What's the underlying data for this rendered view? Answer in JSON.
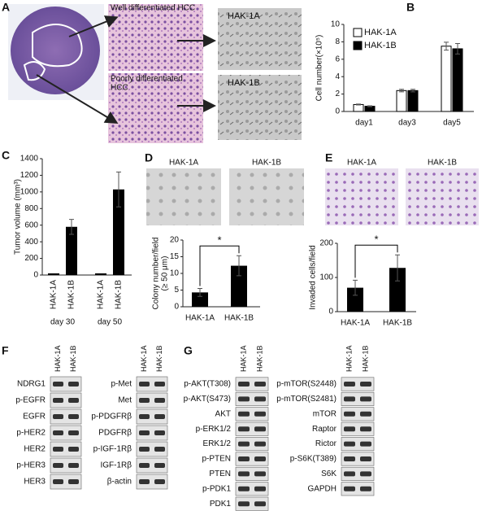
{
  "panels": {
    "A": {
      "letter": "A",
      "well": "Well differentiated HCC",
      "poor": [
        "Poorly differentiated",
        "HCC"
      ],
      "cell_lines": [
        "HAK-1A",
        "HAK-1B"
      ]
    },
    "F": {
      "letter": "F",
      "blots": [
        {
          "lanes": [
            "HAK-1A",
            "HAK-1B"
          ],
          "rows": [
            "NDRG1",
            "p-EGFR",
            "EGFR",
            "p-HER2",
            "HER2",
            "p-HER3",
            "HER3"
          ]
        },
        {
          "lanes": [
            "HAK-1A",
            "HAK-1B"
          ],
          "rows": [
            "p-Met",
            "Met",
            "p-PDGFRβ",
            "PDGFRβ",
            "p-IGF-1Rβ",
            "IGF-1Rβ",
            "β-actin"
          ]
        }
      ]
    },
    "G": {
      "letter": "G",
      "blots": [
        {
          "lanes": [
            "HAK-1A",
            "HAK-1B"
          ],
          "rows": [
            "p-AKT(T308)",
            "p-AKT(S473)",
            "AKT",
            "p-ERK1/2",
            "ERK1/2",
            "p-PTEN",
            "PTEN",
            "p-PDK1",
            "PDK1"
          ]
        },
        {
          "lanes": [
            "HAK-1A",
            "HAK-1B"
          ],
          "rows": [
            "p-mTOR(S2448)",
            "p-mTOR(S2481)",
            "mTOR",
            "Raptor",
            "Rictor",
            "p-S6K(T389)",
            "S6K",
            "GAPDH"
          ]
        }
      ]
    }
  },
  "chart_data": [
    {
      "type": "bar",
      "panel_label": "B",
      "ylabel": [
        "Cell number(×10⁵)"
      ],
      "categories": [
        "day1",
        "day3",
        "day5"
      ],
      "series": [
        {
          "name": "HAK-1A",
          "color": "#ffffff",
          "values": [
            0.8,
            2.4,
            7.5
          ],
          "errors": [
            0.05,
            0.15,
            0.45
          ]
        },
        {
          "name": "HAK-1B",
          "color": "#000000",
          "values": [
            0.6,
            2.4,
            7.2
          ],
          "errors": [
            0.05,
            0.15,
            0.6
          ]
        }
      ],
      "ylim": [
        0,
        10
      ],
      "yticks": [
        0,
        2,
        4,
        6,
        8,
        10
      ]
    },
    {
      "type": "bar",
      "panel_label": "C",
      "ylabel": [
        "Tumor volume (mm³)"
      ],
      "categories": [
        "HAK-1A",
        "HAK-1B",
        "HAK-1A",
        "HAK-1B"
      ],
      "group_labels": [
        "day 30",
        "day 50"
      ],
      "color": "#000000",
      "values": [
        20,
        580,
        20,
        1030
      ],
      "errors": [
        0,
        90,
        0,
        210
      ],
      "ylim": [
        0,
        1400
      ],
      "yticks": [
        0,
        200,
        400,
        600,
        800,
        1000,
        1200,
        1400
      ]
    },
    {
      "type": "bar",
      "panel_label": "D",
      "image_labels": [
        "HAK-1A",
        "HAK-1B"
      ],
      "ylabel": [
        "Colony number/field",
        "(≥ 50 μm)"
      ],
      "categories": [
        "HAK-1A",
        "HAK-1B"
      ],
      "color": "#000000",
      "values": [
        4.3,
        12.3
      ],
      "errors": [
        1.2,
        3.0
      ],
      "annotation": "*",
      "ylim": [
        0,
        20
      ],
      "yticks": [
        0,
        5,
        10,
        15,
        20
      ]
    },
    {
      "type": "bar",
      "panel_label": "E",
      "image_labels": [
        "HAK-1A",
        "HAK-1B"
      ],
      "ylabel": [
        "Invaded cells/field"
      ],
      "categories": [
        "HAK-1A",
        "HAK-1B"
      ],
      "color": "#000000",
      "values": [
        70,
        128
      ],
      "errors": [
        22,
        38
      ],
      "annotation": "*",
      "ylim": [
        0,
        200
      ],
      "yticks": [
        0,
        100,
        200
      ]
    }
  ]
}
